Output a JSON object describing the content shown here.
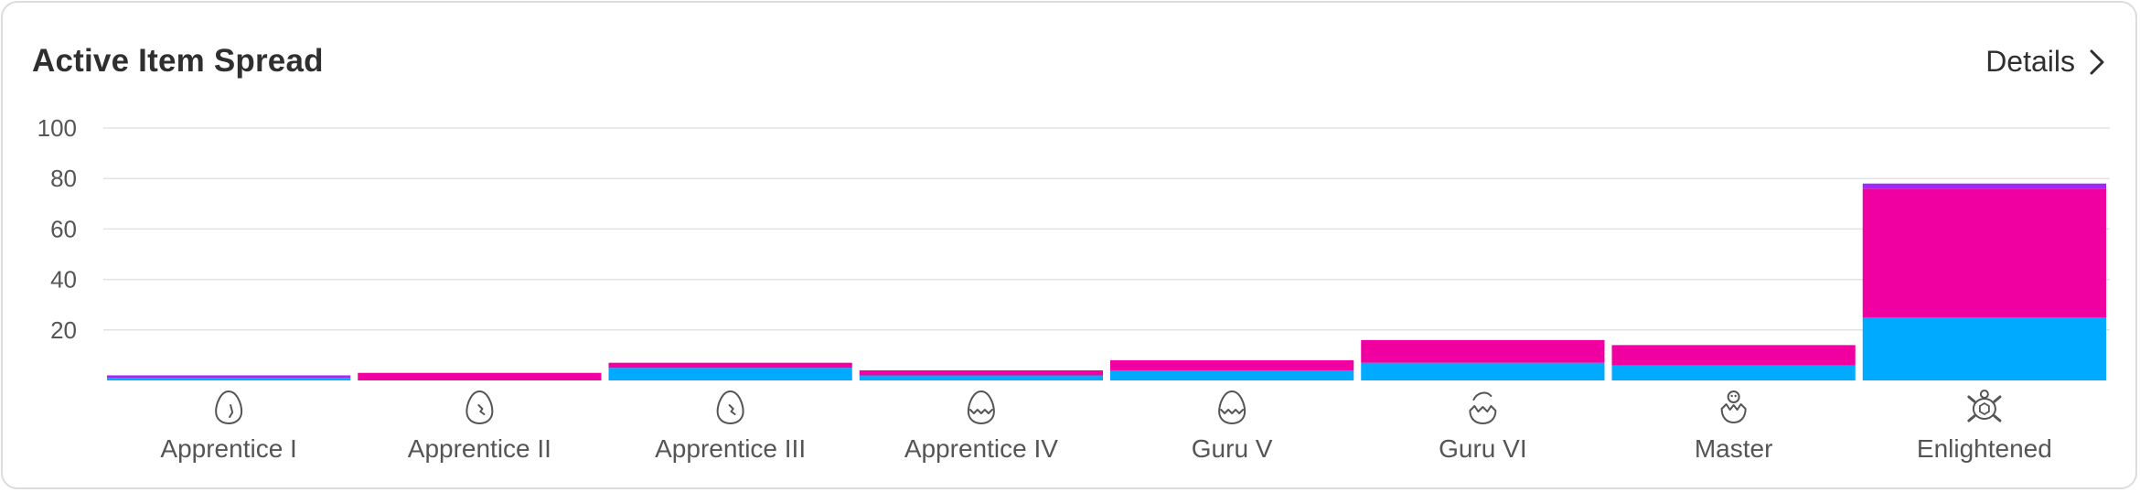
{
  "card": {
    "title": "Active Item Spread",
    "details_label": "Details"
  },
  "chart_data": {
    "type": "bar",
    "stacked": true,
    "categories": [
      "Apprentice I",
      "Apprentice II",
      "Apprentice III",
      "Apprentice IV",
      "Guru V",
      "Guru VI",
      "Master",
      "Enlightened"
    ],
    "category_icons": [
      "egg-icon",
      "egg-crack-icon",
      "egg-crack-icon",
      "egg-zigzag-icon",
      "egg-zigzag-icon",
      "egg-hatching-icon",
      "hatchling-icon",
      "turtle-icon"
    ],
    "series": [
      {
        "color": "#00aaff",
        "values": [
          1,
          0,
          5,
          2,
          4,
          7,
          6,
          25
        ]
      },
      {
        "color": "#f100a1",
        "values": [
          0,
          3,
          2,
          2,
          4,
          9,
          8,
          51
        ]
      },
      {
        "color": "#9f28ff",
        "values": [
          1,
          0,
          0,
          0,
          0,
          0,
          0,
          2
        ]
      }
    ],
    "ylim": [
      0,
      100
    ],
    "yticks": [
      20,
      40,
      60,
      80,
      100
    ],
    "grid": true,
    "legend": "none"
  }
}
